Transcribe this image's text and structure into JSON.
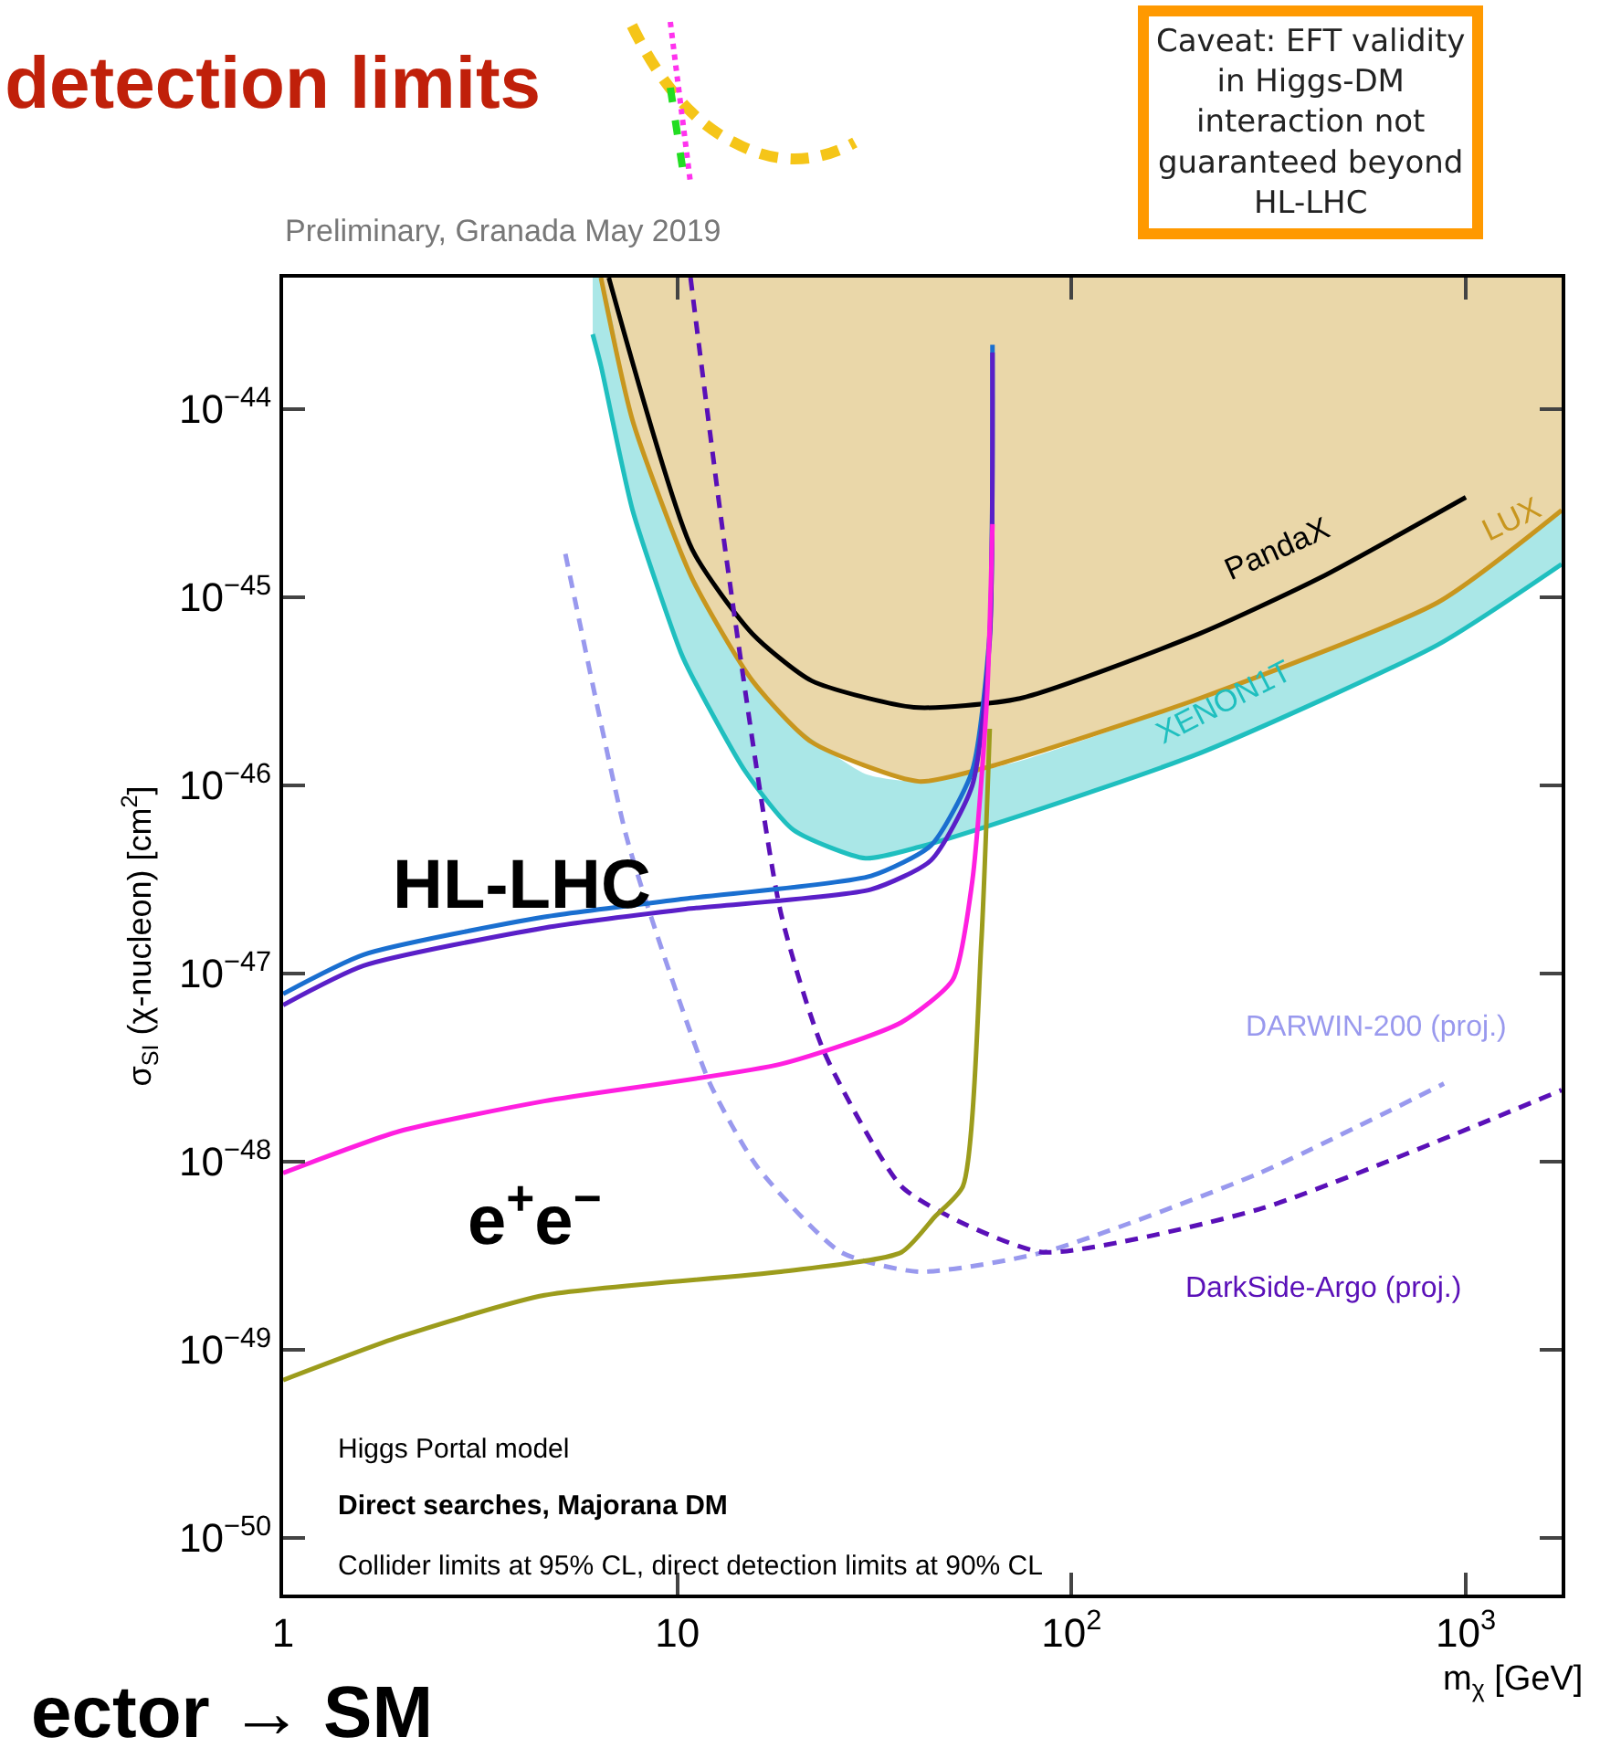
{
  "chart_data": {
    "type": "line",
    "title": "detection limits",
    "xlabel": "m$_{χ}$ [GeV]",
    "ylabel": "σ$_{SI}$ (χ-nucleon) [cm$^{2}$]",
    "log": "xy",
    "xlim": [
      1,
      1750
    ],
    "ylim": [
      5e-51,
      5e-44
    ],
    "xticks": [
      1,
      10,
      {
        "value": 100,
        "label": "10$^{2}$"
      },
      {
        "value": 1000,
        "label": "10$^{3}$"
      }
    ],
    "yticks": [
      {
        "value": 1e-50,
        "label": "10$^{−50}$"
      },
      {
        "value": 1e-49,
        "label": "10$^{−49}$"
      },
      {
        "value": 1e-48,
        "label": "10$^{−48}$"
      },
      {
        "value": 1e-47,
        "label": "10$^{−47}$"
      },
      {
        "value": 1e-46,
        "label": "10$^{−46}$"
      },
      {
        "value": 1e-45,
        "label": "10$^{−45}$"
      },
      {
        "value": 1e-44,
        "label": "10$^{−44}$"
      }
    ],
    "series": [
      {
        "name": "LUX",
        "color": "#c8961e",
        "x": [
          6.4,
          7.7,
          10.9,
          15.5,
          21.9,
          41,
          62,
          211,
          850,
          1750
        ],
        "values": [
          5e-44,
          8.7e-45,
          1.26e-45,
          3.6e-46,
          1.7e-46,
          1.05e-46,
          1.26e-46,
          2.9e-46,
          9.4e-46,
          2.9e-45
        ],
        "lower": [
          5e-44,
          8.7e-45,
          1.26e-45,
          3.6e-46,
          1.7e-46,
          1.05e-46,
          1.26e-46,
          2.9e-46,
          9.4e-46,
          2.9e-45
        ],
        "upper": [
          5e-44,
          5e-44,
          5e-44,
          5e-44,
          5e-44,
          5e-44,
          5e-44,
          5e-44,
          5e-44,
          5e-44
        ]
      },
      {
        "name": "XENON1T",
        "color": "#1fbfbf",
        "x": [
          6.1,
          6.4,
          7.7,
          10.2,
          10.9,
          14.9,
          19.7,
          30,
          41,
          74,
          211,
          850,
          1750
        ],
        "values": [
          2.5e-44,
          1.7e-44,
          2.9e-45,
          5.1e-46,
          3.8e-46,
          1.18e-46,
          5.8e-47,
          4.1e-47,
          4.7e-47,
          6.9e-47,
          1.48e-46,
          5.6e-46,
          1.5e-45
        ],
        "lower": [
          2.5e-44,
          1.7e-44,
          2.9e-45,
          5.1e-46,
          3.8e-46,
          1.18e-46,
          5.8e-47,
          4.1e-47,
          4.7e-47,
          6.9e-47,
          1.48e-46,
          5.6e-46,
          1.5e-45
        ],
        "upper": [
          5e-44,
          5e-44,
          8.7e-45,
          1.7e-45,
          1.26e-45,
          3.9e-46,
          2.1e-46,
          1.15e-46,
          1.05e-46,
          1.35e-46,
          2.9e-46,
          9.4e-46,
          2.9e-45
        ]
      },
      {
        "name": "PandaX",
        "color": "#000000",
        "x": [
          6.7,
          10.9,
          15.5,
          21.9,
          39.8,
          74,
          211,
          424,
          1000
        ],
        "values": [
          5e-44,
          1.8e-45,
          6.4e-46,
          3.6e-46,
          2.6e-46,
          2.9e-46,
          6.4e-46,
          1.26e-45,
          3.4e-45
        ]
      },
      {
        "name": "DARWIN-200 (proj.)",
        "color": "#9999ee",
        "line_style": "dashed",
        "x": [
          5.2,
          7.4,
          8.8,
          12.1,
          16,
          26,
          41,
          85,
          300,
          880
        ],
        "values": [
          1.7e-45,
          5.5e-47,
          1.7e-47,
          2.6e-48,
          9.3e-49,
          3.3e-49,
          2.6e-49,
          3.3e-49,
          8.7e-49,
          2.6e-48
        ]
      },
      {
        "name": "DarkSide-Argo (proj.)",
        "color": "#5a10b8",
        "line_style": "dashed",
        "x": [
          10.8,
          13.4,
          18.3,
          23.6,
          37,
          52,
          85,
          300,
          1750
        ],
        "values": [
          5e-44,
          1.47e-45,
          2.1e-47,
          3.8e-48,
          7.4e-49,
          4.8e-49,
          3.3e-49,
          5.6e-49,
          2.4e-48
        ]
      },
      {
        "color": "#1a6fd0",
        "x": [
          1,
          1.6,
          4.6,
          10.5,
          31,
          44,
          56,
          62,
          63
        ],
        "values": [
          7.8e-48,
          1.26e-47,
          2e-47,
          2.5e-47,
          3.3e-47,
          4.8e-47,
          1.2e-46,
          6.5e-46,
          2.2e-44
        ]
      },
      {
        "color": "#5a1fc8",
        "x": [
          1,
          1.6,
          4.6,
          10.5,
          31,
          44,
          56,
          62,
          63
        ],
        "values": [
          6.8e-48,
          1.1e-47,
          1.75e-47,
          2.2e-47,
          2.8e-47,
          4e-47,
          1e-46,
          6e-46,
          2e-44
        ]
      },
      {
        "color": "#ff1fe0",
        "x": [
          1,
          1.97,
          4.6,
          18.3,
          37,
          50,
          56,
          61,
          63
        ],
        "values": [
          8.7e-49,
          1.45e-48,
          2.1e-48,
          3.3e-48,
          5.5e-48,
          9.3e-48,
          3.1e-47,
          2.9e-46,
          2.45e-45
        ]
      },
      {
        "color": "#9c9c1c",
        "x": [
          1,
          1.97,
          4.6,
          18.3,
          37,
          45,
          53,
          59,
          62
        ],
        "values": [
          6.9e-50,
          1.17e-49,
          1.95e-49,
          2.6e-49,
          3.3e-49,
          5.1e-49,
          7.4e-49,
          1.44e-47,
          2e-46
        ]
      }
    ],
    "annotations": [
      "HL-LHC",
      "e$^{+}$e$^{−}$",
      "Preliminary, Granada May 2019",
      "Higgs Portal model",
      "Direct searches, Majorana DM",
      "Collider limits at 95% CL, direct detection limits at 90% CL",
      "Caveat: EFT validity\nin Higgs-DM\ninteraction not\nguaranteed beyond\nHL-LHC",
      "ector → SM"
    ]
  }
}
